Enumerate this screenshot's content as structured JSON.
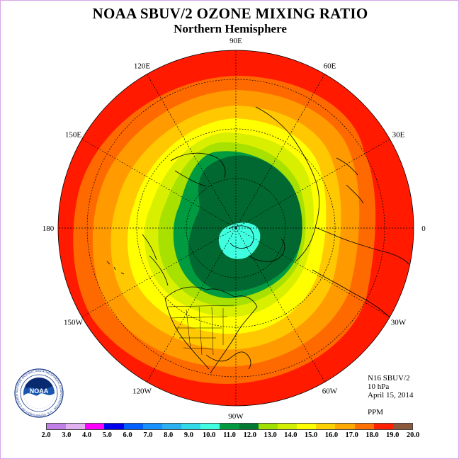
{
  "title": "NOAA SBUV/2 OZONE MIXING RATIO",
  "subtitle": "Northern Hemisphere",
  "longitude_labels": [
    {
      "text": "90E",
      "lon": 90
    },
    {
      "text": "60E",
      "lon": 60
    },
    {
      "text": "30E",
      "lon": 30
    },
    {
      "text": "0",
      "lon": 0
    },
    {
      "text": "30W",
      "lon": -30
    },
    {
      "text": "60W",
      "lon": -60
    },
    {
      "text": "90W",
      "lon": -90
    },
    {
      "text": "120W",
      "lon": -120
    },
    {
      "text": "150W",
      "lon": -150
    },
    {
      "text": "180",
      "lon": 180
    },
    {
      "text": "150E",
      "lon": 150
    },
    {
      "text": "120E",
      "lon": 120
    }
  ],
  "info": {
    "instrument": "N16 SBUV/2",
    "level": "10 hPa",
    "date": "April 15, 2014",
    "units": "PPM"
  },
  "color_scale": {
    "labels": [
      "2.0",
      "3.0",
      "4.0",
      "5.0",
      "6.0",
      "7.0",
      "8.0",
      "9.0",
      "10.0",
      "11.0",
      "12.0",
      "13.0",
      "14.0",
      "15.0",
      "16.0",
      "17.0",
      "18.0",
      "19.0",
      "20.0"
    ],
    "colors": [
      "#c080e8",
      "#e0b0f0",
      "#ff00ff",
      "#0000ee",
      "#0060ff",
      "#1890ff",
      "#28b0f0",
      "#30d8e8",
      "#40ffe0",
      "#009a40",
      "#007a30",
      "#a0e000",
      "#d0f000",
      "#ffff00",
      "#ffd000",
      "#ffa800",
      "#ff7000",
      "#ff2000",
      "#8b5a3c"
    ]
  },
  "map_fill_colors": {
    "red": "#ff1a00",
    "orange_red": "#ff6a00",
    "orange": "#ff9a00",
    "gold": "#ffc800",
    "yellow": "#ffff00",
    "yellow_green": "#d8f000",
    "light_green": "#a8e000",
    "green": "#009a40",
    "dark_green": "#006830",
    "cyan": "#40ffe0",
    "brown": "#8b5a3c"
  },
  "logo": {
    "text": "NOAA",
    "ring_text": "NATIONAL OCEANIC AND ATMOSPHERIC ADMINISTRATION · U.S. DEPARTMENT OF COMMERCE"
  }
}
